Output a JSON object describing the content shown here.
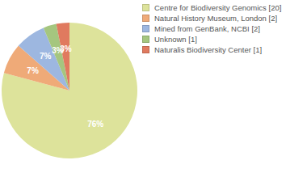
{
  "chart_data": {
    "type": "pie",
    "categories": [
      "Centre for Biodiversity Genomics [20]",
      "Natural History Museum, London [2]",
      "Mined from GenBank, NCBI [2]",
      "Unknown [1]",
      "Naturalis Biodiversity Center [1]"
    ],
    "values": [
      76,
      7,
      7,
      3,
      3
    ],
    "value_labels": [
      "76%",
      "7%",
      "7%",
      "3%",
      "3%"
    ],
    "data_labels": true,
    "colors": [
      "#dde39b",
      "#efaa78",
      "#9db7e0",
      "#a5c67f",
      "#e07a5f"
    ],
    "legend": "right"
  }
}
